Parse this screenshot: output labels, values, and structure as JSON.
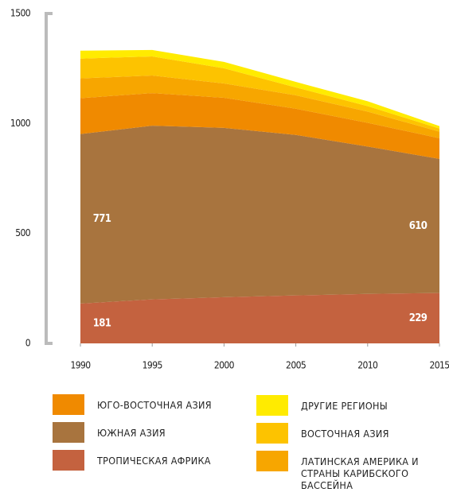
{
  "chart_data": {
    "type": "stacked_area",
    "x": [
      1990,
      1995,
      2000,
      2005,
      2010,
      2015
    ],
    "xticks": [
      1990,
      1995,
      2000,
      2005,
      2010,
      2015
    ],
    "xlim": [
      1990,
      2015
    ],
    "ylim": [
      0,
      1500
    ],
    "yticks": [
      0,
      500,
      1000,
      1500
    ],
    "series": [
      {
        "name": "ТРОПИЧЕСКАЯ АФРИКА",
        "color": "#c4623f",
        "values": [
          181,
          200,
          210,
          218,
          225,
          229
        ],
        "labeled": true
      },
      {
        "name": "ЮЖНАЯ АЗИЯ",
        "color": "#a8743e",
        "values": [
          771,
          790,
          770,
          730,
          670,
          610
        ],
        "labeled": true
      },
      {
        "name": "ЮГО-ВОСТОЧНАЯ АЗИЯ",
        "color": "#f08a00",
        "values": [
          163,
          148,
          137,
          119,
          108,
          94
        ]
      },
      {
        "name": "ЛАТИНСКАЯ АМЕРИКА И СТРАНЫ КАРИБСКОГО БАССЕЙНА",
        "color": "#f7a600",
        "values": [
          90,
          80,
          65,
          61,
          51,
          30
        ]
      },
      {
        "name": "ВОСТОЧНАЯ АЗИЯ",
        "color": "#fdc300",
        "values": [
          90,
          87,
          69,
          36,
          25,
          14
        ]
      },
      {
        "name": "ДРУГИЕ РЕГИОНЫ",
        "color": "#ffeb00",
        "values": [
          36,
          29,
          29,
          25,
          22,
          11
        ]
      }
    ]
  }
}
